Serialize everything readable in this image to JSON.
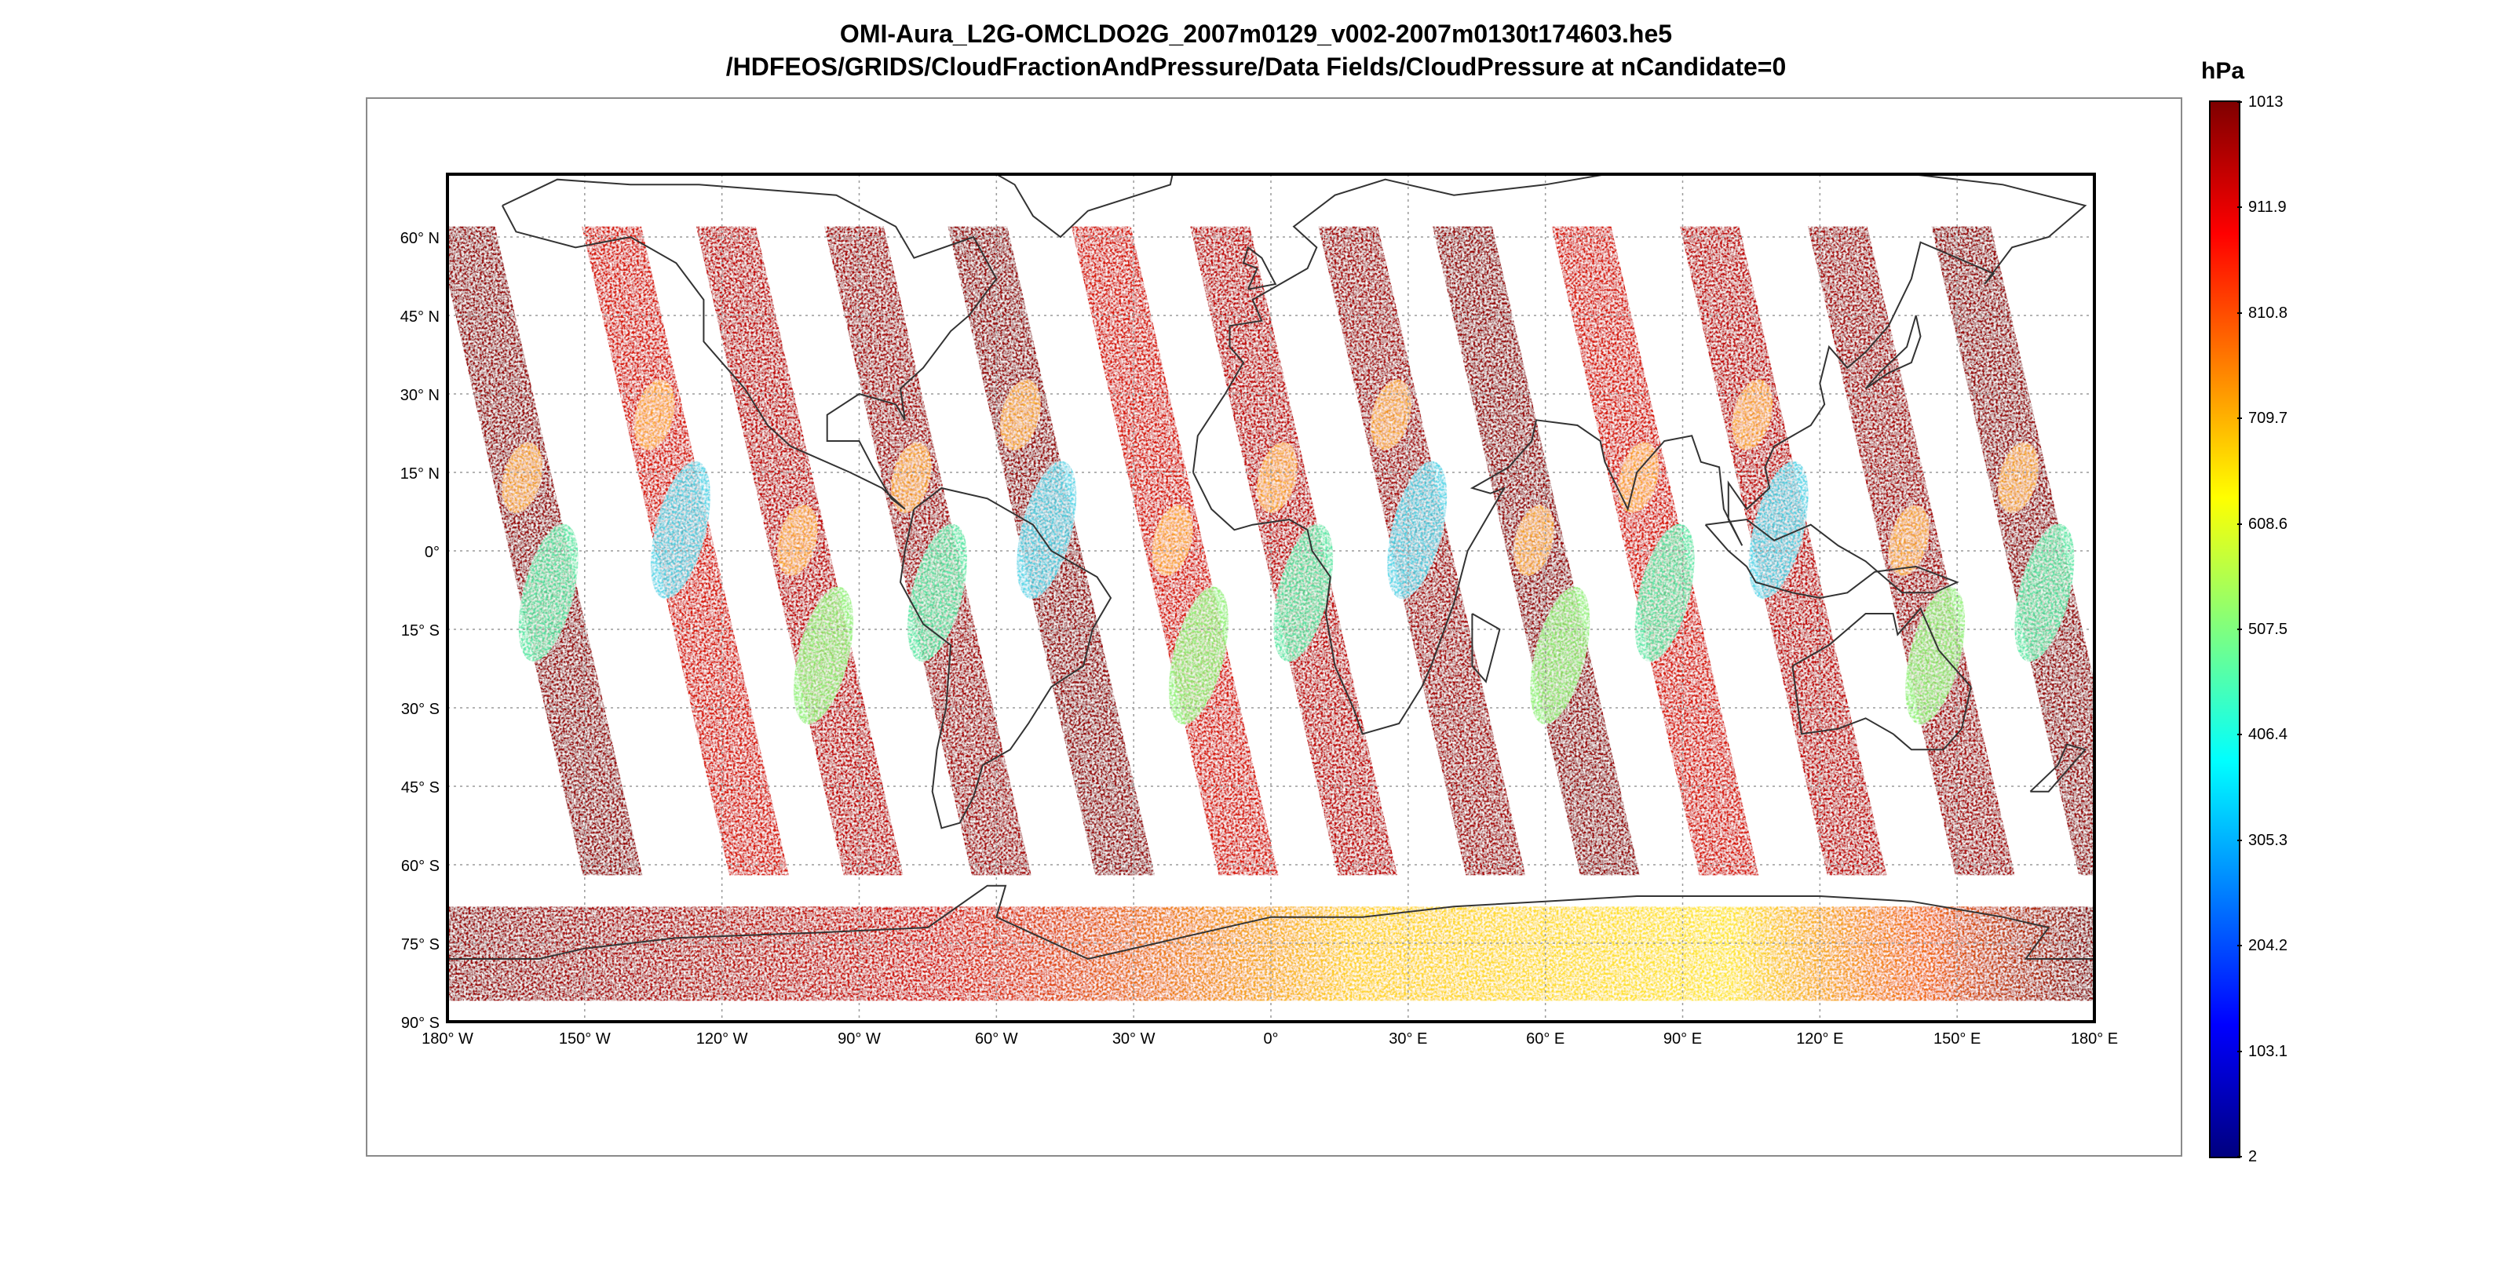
{
  "title": {
    "line1": "OMI-Aura_L2G-OMCLDO2G_2007m0129_v002-2007m0130t174603.he5",
    "line2": "/HDFEOS/GRIDS/CloudFractionAndPressure/Data Fields/CloudPressure at nCandidate=0"
  },
  "map": {
    "projection": "equirectangular",
    "lon_range": [
      -180,
      180
    ],
    "lat_range": [
      -90,
      72
    ],
    "grid": true,
    "coastlines": true,
    "lat_ticks": [
      {
        "value": 60,
        "label": "60° N"
      },
      {
        "value": 45,
        "label": "45° N"
      },
      {
        "value": 30,
        "label": "30° N"
      },
      {
        "value": 15,
        "label": "15° N"
      },
      {
        "value": 0,
        "label": "0°"
      },
      {
        "value": -15,
        "label": "15° S"
      },
      {
        "value": -30,
        "label": "30° S"
      },
      {
        "value": -45,
        "label": "45° S"
      },
      {
        "value": -60,
        "label": "60° S"
      },
      {
        "value": -75,
        "label": "75° S"
      },
      {
        "value": -90,
        "label": "90° S"
      }
    ],
    "lon_ticks": [
      {
        "value": -180,
        "label": "180° W"
      },
      {
        "value": -150,
        "label": "150° W"
      },
      {
        "value": -120,
        "label": "120° W"
      },
      {
        "value": -90,
        "label": "90° W"
      },
      {
        "value": -60,
        "label": "60° W"
      },
      {
        "value": -30,
        "label": "30° W"
      },
      {
        "value": 0,
        "label": "0°"
      },
      {
        "value": 30,
        "label": "30° E"
      },
      {
        "value": 60,
        "label": "60° E"
      },
      {
        "value": 90,
        "label": "90° E"
      },
      {
        "value": 120,
        "label": "120° E"
      },
      {
        "value": 150,
        "label": "150° E"
      },
      {
        "value": 180,
        "label": "180° E"
      }
    ],
    "swath_equator_lons": [
      -160,
      -128,
      -103,
      -75,
      -48,
      -21,
      5,
      33,
      58,
      84,
      112,
      140,
      167
    ],
    "polar_band_lat_range": [
      -86,
      -68
    ]
  },
  "colorbar": {
    "unit": "hPa",
    "colormap": "jet",
    "min": 2,
    "max": 1013,
    "ticks": [
      "1013",
      "911.9",
      "810.8",
      "709.7",
      "608.6",
      "507.5",
      "406.4",
      "305.3",
      "204.2",
      "103.1",
      "2"
    ]
  },
  "colors": {
    "jet": [
      "#00007f",
      "#0000ff",
      "#007fff",
      "#00ffff",
      "#7fff7f",
      "#ffff00",
      "#ff7f00",
      "#ff0000",
      "#7f0000"
    ],
    "frame": "#8a8a8a",
    "grid": "#9a9a9a",
    "coast": "#333333"
  }
}
